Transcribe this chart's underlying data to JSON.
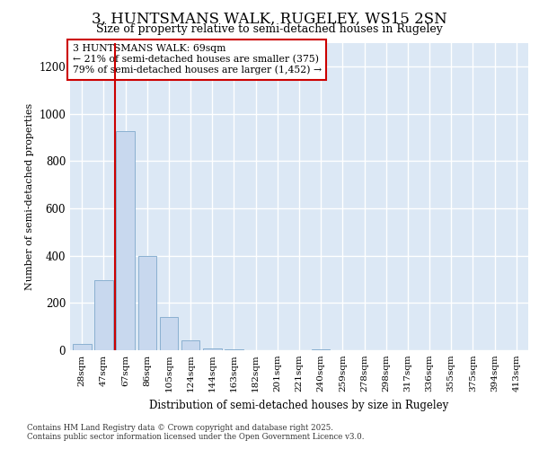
{
  "title1": "3, HUNTSMANS WALK, RUGELEY, WS15 2SN",
  "title2": "Size of property relative to semi-detached houses in Rugeley",
  "xlabel": "Distribution of semi-detached houses by size in Rugeley",
  "ylabel": "Number of semi-detached properties",
  "categories": [
    "28sqm",
    "47sqm",
    "67sqm",
    "86sqm",
    "105sqm",
    "124sqm",
    "144sqm",
    "163sqm",
    "182sqm",
    "201sqm",
    "221sqm",
    "240sqm",
    "259sqm",
    "278sqm",
    "298sqm",
    "317sqm",
    "336sqm",
    "355sqm",
    "375sqm",
    "394sqm",
    "413sqm"
  ],
  "values": [
    25,
    295,
    925,
    400,
    140,
    40,
    8,
    2,
    0,
    0,
    0,
    2,
    0,
    0,
    0,
    0,
    0,
    0,
    0,
    0,
    0
  ],
  "bar_color": "#c8d8ee",
  "bar_edge_color": "#8ab0d0",
  "vline_color": "#cc0000",
  "annotation_title": "3 HUNTSMANS WALK: 69sqm",
  "annotation_line1": "← 21% of semi-detached houses are smaller (375)",
  "annotation_line2": "79% of semi-detached houses are larger (1,452) →",
  "ylim": [
    0,
    1300
  ],
  "yticks": [
    0,
    200,
    400,
    600,
    800,
    1000,
    1200
  ],
  "footnote1": "Contains HM Land Registry data © Crown copyright and database right 2025.",
  "footnote2": "Contains public sector information licensed under the Open Government Licence v3.0.",
  "bg_color": "#ffffff",
  "plot_bg_color": "#dce8f5"
}
